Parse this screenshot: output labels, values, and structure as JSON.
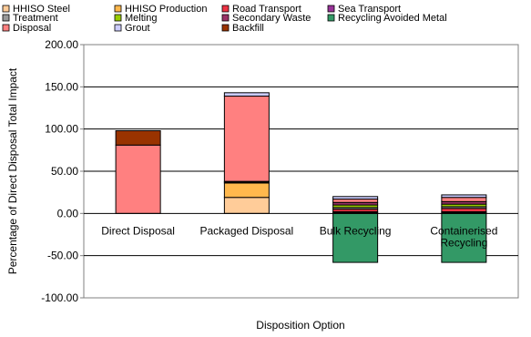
{
  "chart_data": {
    "type": "bar",
    "stacked": true,
    "xlabel": "Disposition Option",
    "ylabel": "Percentage of Direct Disposal Total Impact",
    "ylim": [
      -100,
      200
    ],
    "yticks": [
      200,
      150,
      100,
      50,
      0,
      -50,
      -100
    ],
    "ytick_labels": [
      "200.00",
      "150.00",
      "100.00",
      "50.00",
      "0.00",
      "-50.00",
      "-100.00"
    ],
    "grid": "horizontal",
    "legend_position": "top",
    "categories": [
      {
        "label_lines": [
          "Direct Disposal"
        ]
      },
      {
        "label_lines": [
          "Packaged Disposal"
        ]
      },
      {
        "label_lines": [
          "Bulk Recycling"
        ]
      },
      {
        "label_lines": [
          "Containerised",
          "Recycling"
        ]
      }
    ],
    "series": [
      {
        "name": "HHISO Steel",
        "color": "#ffcc99",
        "values": [
          0,
          19,
          1,
          1
        ]
      },
      {
        "name": "HHISO Production",
        "color": "#ffb84d",
        "values": [
          0,
          17,
          1,
          1
        ]
      },
      {
        "name": "Road Transport",
        "color": "#ee3344",
        "values": [
          0,
          1,
          3,
          4
        ]
      },
      {
        "name": "Sea Transport",
        "color": "#993399",
        "values": [
          0,
          0,
          0,
          0
        ]
      },
      {
        "name": "Treatment",
        "color": "#999999",
        "values": [
          0,
          1,
          2,
          2
        ]
      },
      {
        "name": "Melting",
        "color": "#99cc00",
        "values": [
          0,
          0,
          3,
          3
        ]
      },
      {
        "name": "Secondary Waste",
        "color": "#993366",
        "values": [
          0,
          0,
          3,
          3
        ]
      },
      {
        "name": "Recycling  Avoided Metal",
        "color": "#339966",
        "values": [
          0,
          0,
          -58,
          -58
        ]
      },
      {
        "name": "Disposal",
        "color": "#ff8080",
        "values": [
          81,
          101,
          4,
          5
        ]
      },
      {
        "name": "Grout",
        "color": "#ccccff",
        "values": [
          0,
          4,
          3,
          3
        ]
      },
      {
        "name": "Backfill",
        "color": "#993300",
        "values": [
          17,
          0,
          0,
          0
        ]
      }
    ]
  }
}
